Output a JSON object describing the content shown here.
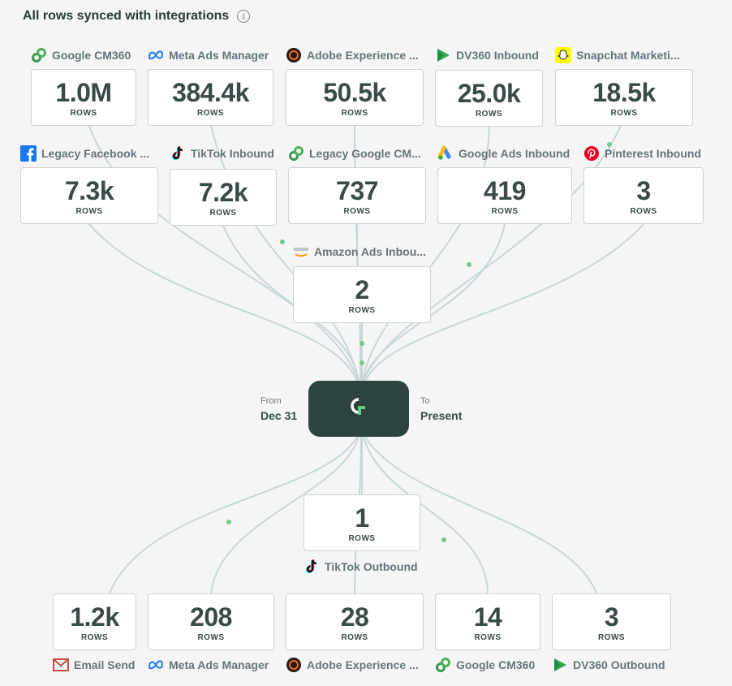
{
  "header": {
    "title": "All rows synced with integrations",
    "info_icon": "info-icon"
  },
  "unit_label": "ROWS",
  "hub": {
    "from_label": "From",
    "from_value": "Dec 31",
    "to_label": "To",
    "to_value": "Present",
    "logo": "census-logo-icon"
  },
  "inbound": [
    {
      "name": "Google CM360",
      "value": "1.0M",
      "icon": "google-cm360-icon"
    },
    {
      "name": "Meta Ads Manager",
      "value": "384.4k",
      "icon": "meta-icon"
    },
    {
      "name": "Adobe Experience ...",
      "value": "50.5k",
      "icon": "adobe-experience-icon"
    },
    {
      "name": "DV360 Inbound",
      "value": "25.0k",
      "icon": "dv360-icon"
    },
    {
      "name": "Snapchat Marketi...",
      "value": "18.5k",
      "icon": "snapchat-icon"
    },
    {
      "name": "Legacy Facebook ...",
      "value": "7.3k",
      "icon": "facebook-icon"
    },
    {
      "name": "TikTok Inbound",
      "value": "7.2k",
      "icon": "tiktok-icon"
    },
    {
      "name": "Legacy Google CM...",
      "value": "737",
      "icon": "google-cm360-icon"
    },
    {
      "name": "Google Ads Inbound",
      "value": "419",
      "icon": "google-ads-icon"
    },
    {
      "name": "Pinterest Inbound",
      "value": "3",
      "icon": "pinterest-icon"
    },
    {
      "name": "Amazon Ads Inbou...",
      "value": "2",
      "icon": "amazon-ads-icon"
    }
  ],
  "outbound": [
    {
      "name": "TikTok Outbound",
      "value": "1",
      "icon": "tiktok-icon"
    },
    {
      "name": "Email Send",
      "value": "1.2k",
      "icon": "email-icon"
    },
    {
      "name": "Meta Ads Manager",
      "value": "208",
      "icon": "meta-icon"
    },
    {
      "name": "Adobe Experience ...",
      "value": "28",
      "icon": "adobe-experience-icon"
    },
    {
      "name": "Google CM360",
      "value": "14",
      "icon": "google-cm360-icon"
    },
    {
      "name": "DV360 Outbound",
      "value": "3",
      "icon": "dv360-icon"
    }
  ],
  "colors": {
    "hub": "#2c4340",
    "link": "#c5d3d6",
    "dot": "#6cc58a"
  }
}
